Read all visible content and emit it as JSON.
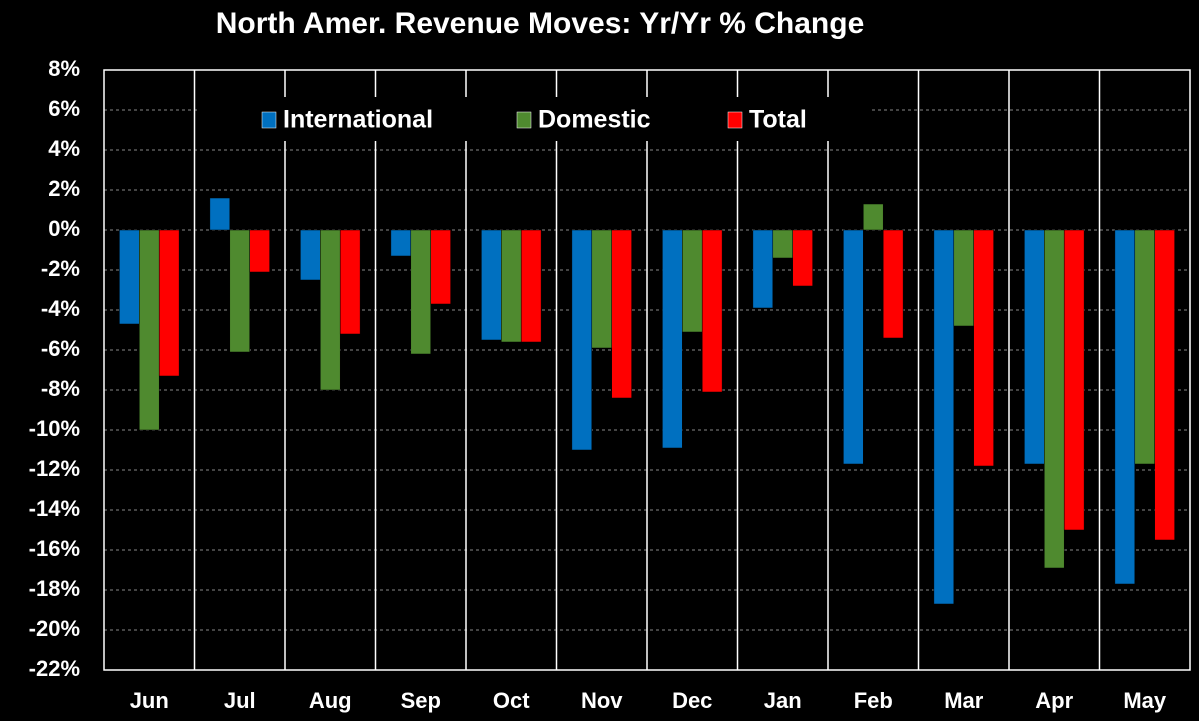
{
  "chart_data": {
    "type": "bar",
    "title": "North Amer. Revenue Moves: Yr/Yr % Change",
    "categories": [
      "Jun",
      "Jul",
      "Aug",
      "Sep",
      "Oct",
      "Nov",
      "Dec",
      "Jan",
      "Feb",
      "Mar",
      "Apr",
      "May"
    ],
    "series": [
      {
        "name": "International",
        "color": "#0070c0",
        "values": [
          -4.7,
          1.6,
          -2.5,
          -1.3,
          -5.5,
          -11.0,
          -10.9,
          -3.9,
          -11.7,
          -18.7,
          -11.7,
          -17.7
        ]
      },
      {
        "name": "Domestic",
        "color": "#4f8a2f",
        "values": [
          -10.0,
          -6.1,
          -8.0,
          -6.2,
          -5.6,
          -5.9,
          -5.1,
          -1.4,
          1.3,
          -4.8,
          -16.9,
          -11.7
        ]
      },
      {
        "name": "Total",
        "color": "#ff0000",
        "values": [
          -7.3,
          -2.1,
          -5.2,
          -3.7,
          -5.6,
          -8.4,
          -8.1,
          -2.8,
          -5.4,
          -11.8,
          -15.0,
          -15.5
        ]
      }
    ],
    "ylim": [
      -22,
      8
    ],
    "yticks": [
      {
        "value": 8,
        "label": "8%"
      },
      {
        "value": 6,
        "label": "6%"
      },
      {
        "value": 4,
        "label": "4%"
      },
      {
        "value": 2,
        "label": "2%"
      },
      {
        "value": 0,
        "label": "0%"
      },
      {
        "value": -2,
        "label": "-2%"
      },
      {
        "value": -4,
        "label": "-4%"
      },
      {
        "value": -6,
        "label": "-6%"
      },
      {
        "value": -8,
        "label": "-8%"
      },
      {
        "value": -10,
        "label": "-10%"
      },
      {
        "value": -12,
        "label": "-12%"
      },
      {
        "value": -14,
        "label": "-14%"
      },
      {
        "value": -16,
        "label": "-16%"
      },
      {
        "value": -18,
        "label": "-18%"
      },
      {
        "value": -20,
        "label": "-20%"
      },
      {
        "value": -22,
        "label": "-22%"
      }
    ],
    "grid": true,
    "legend": "top"
  }
}
